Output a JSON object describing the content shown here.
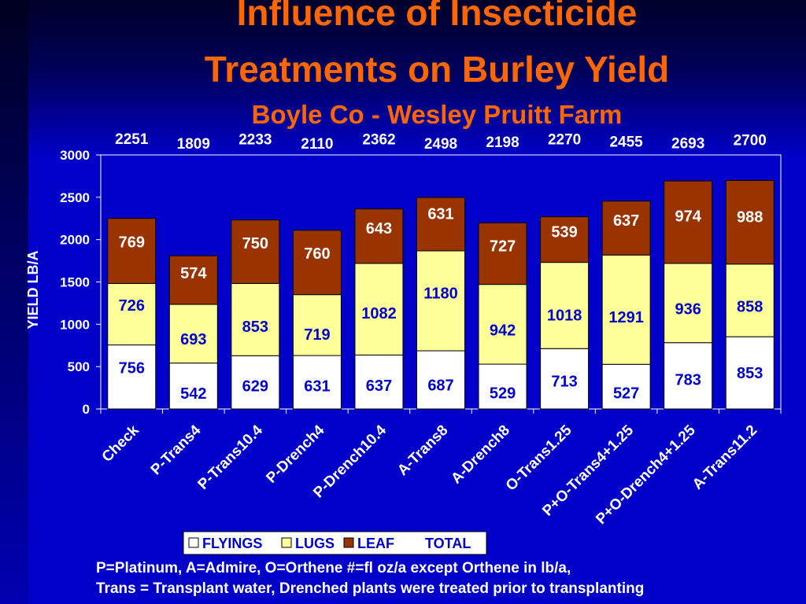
{
  "title_line1": "Influence of Insecticide",
  "title_line2": "Treatments on Burley Yield",
  "subtitle": "Boyle Co - Wesley Pruitt Farm",
  "footnote_line1": "P=Platinum, A=Admire, O=Orthene #=fl oz/a except Orthene in lb/a,",
  "footnote_line2": "Trans = Transplant water, Drenched plants were treated prior to transplanting",
  "chart_data": {
    "type": "bar",
    "stacked": true,
    "title": "Influence of Insecticide Treatments on Burley Yield",
    "subtitle": "Boyle Co - Wesley Pruitt Farm",
    "xlabel": "",
    "ylabel": "YIELD LB/A",
    "ylim": [
      0,
      3000
    ],
    "yticks": [
      0,
      500,
      1000,
      1500,
      2000,
      2500,
      3000
    ],
    "grid": false,
    "legend_position": "bottom",
    "categories": [
      "Check",
      "P-Trans4",
      "P-Trans10.4",
      "P-Drench4",
      "P-Drench10.4",
      "A-Trans8",
      "A-Drench8",
      "O-Trans1.25",
      "P+O-Trans4+1.25",
      "P+O-Drench4+1.25",
      "A-Trans11.2"
    ],
    "series": [
      {
        "name": "FLYINGS",
        "color": "#ffffff",
        "values": [
          756,
          542,
          629,
          631,
          637,
          687,
          529,
          713,
          527,
          783,
          853
        ]
      },
      {
        "name": "LUGS",
        "color": "#ffff99",
        "values": [
          726,
          693,
          853,
          719,
          1082,
          1180,
          942,
          1018,
          1291,
          936,
          858
        ]
      },
      {
        "name": "LEAF",
        "color": "#993300",
        "values": [
          769,
          574,
          750,
          760,
          643,
          631,
          727,
          539,
          637,
          974,
          988
        ]
      }
    ],
    "total_label": "TOTAL",
    "totals": [
      2251,
      1809,
      2233,
      2110,
      2362,
      2498,
      2198,
      2270,
      2455,
      2693,
      2700
    ]
  }
}
